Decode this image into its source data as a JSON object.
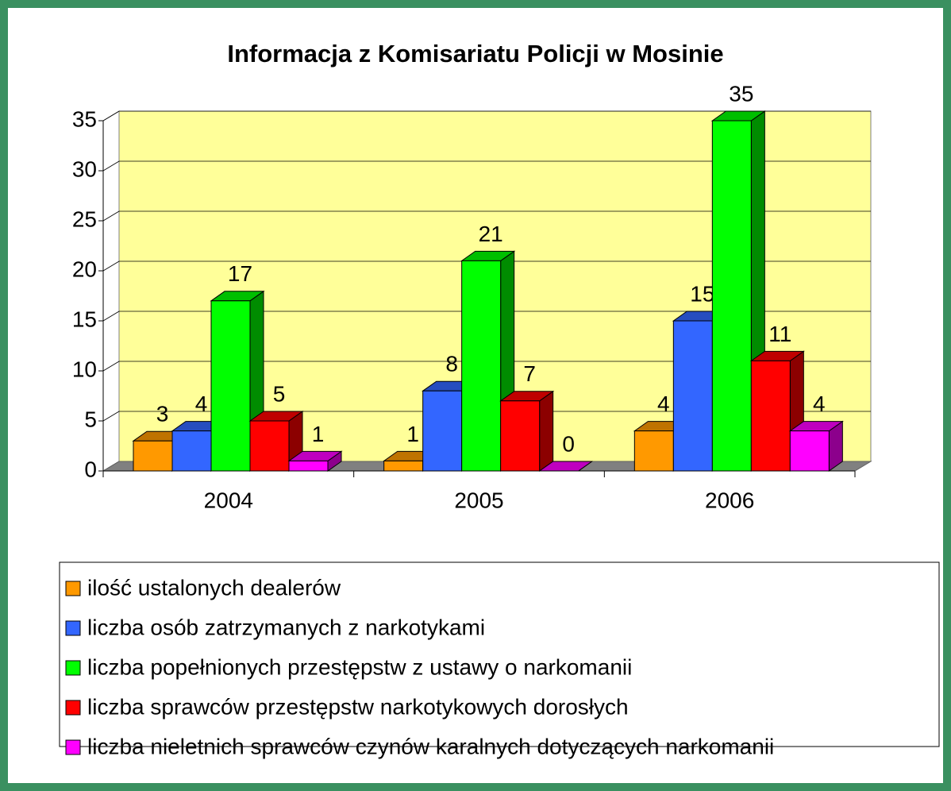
{
  "chart_data": {
    "type": "bar3d",
    "title": "Informacja z Komisariatu Policji w Mosinie",
    "categories": [
      "2004",
      "2005",
      "2006"
    ],
    "series": [
      {
        "name": "ilość ustalonych dealerów",
        "color": "#ff9900",
        "values": [
          3,
          1,
          4
        ]
      },
      {
        "name": "liczba osób zatrzymanych z narkotykami",
        "color": "#3366ff",
        "values": [
          4,
          8,
          15
        ]
      },
      {
        "name": "liczba popełnionych przestępstw z ustawy o narkomanii",
        "color": "#00ff00",
        "values": [
          17,
          21,
          35
        ]
      },
      {
        "name": "liczba sprawców przestępstw narkotykowych dorosłych",
        "color": "#ff0000",
        "values": [
          5,
          7,
          11
        ]
      },
      {
        "name": "liczba nieletnich sprawców czynów karalnych dotyczących narkomanii",
        "color": "#ff00ff",
        "values": [
          1,
          0,
          4
        ]
      }
    ],
    "ylim": [
      0,
      35
    ],
    "yticks": [
      0,
      5,
      10,
      15,
      20,
      25,
      30,
      35
    ],
    "grid": true,
    "legend": "bottom"
  }
}
